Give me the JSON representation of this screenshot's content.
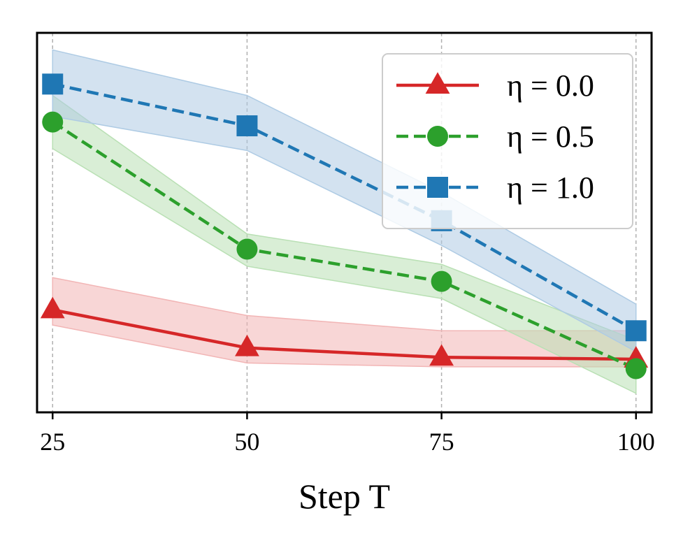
{
  "chart_data": {
    "type": "line",
    "title": "",
    "xlabel": "Step T",
    "ylabel": "",
    "x": [
      25,
      50,
      75,
      100
    ],
    "x_ticks": [
      "25",
      "50",
      "75",
      "100"
    ],
    "xlim": [
      23,
      102
    ],
    "ylim": [
      0,
      1
    ],
    "grid": "vertical dashed",
    "legend_position": "top-right",
    "series": [
      {
        "name": "η = 0.0",
        "color": "#d62728",
        "fill": "#f2b5b5",
        "linestyle": "solid",
        "marker": "triangle",
        "values": [
          0.27,
          0.17,
          0.145,
          0.14
        ],
        "lower": [
          0.23,
          0.13,
          0.12,
          0.12
        ],
        "upper": [
          0.355,
          0.255,
          0.215,
          0.215
        ]
      },
      {
        "name": "η = 0.5",
        "color": "#2ca02c",
        "fill": "#b9e0b4",
        "linestyle": "dashed",
        "marker": "circle",
        "values": [
          0.765,
          0.43,
          0.345,
          0.115
        ],
        "lower": [
          0.695,
          0.385,
          0.3,
          0.05
        ],
        "upper": [
          0.835,
          0.47,
          0.39,
          0.19
        ]
      },
      {
        "name": "η = 1.0",
        "color": "#1f77b4",
        "fill": "#aecbe4",
        "linestyle": "dashed",
        "marker": "square",
        "values": [
          0.865,
          0.755,
          0.505,
          0.215
        ],
        "lower": [
          0.78,
          0.69,
          0.44,
          0.16
        ],
        "upper": [
          0.955,
          0.835,
          0.58,
          0.285
        ]
      }
    ]
  }
}
